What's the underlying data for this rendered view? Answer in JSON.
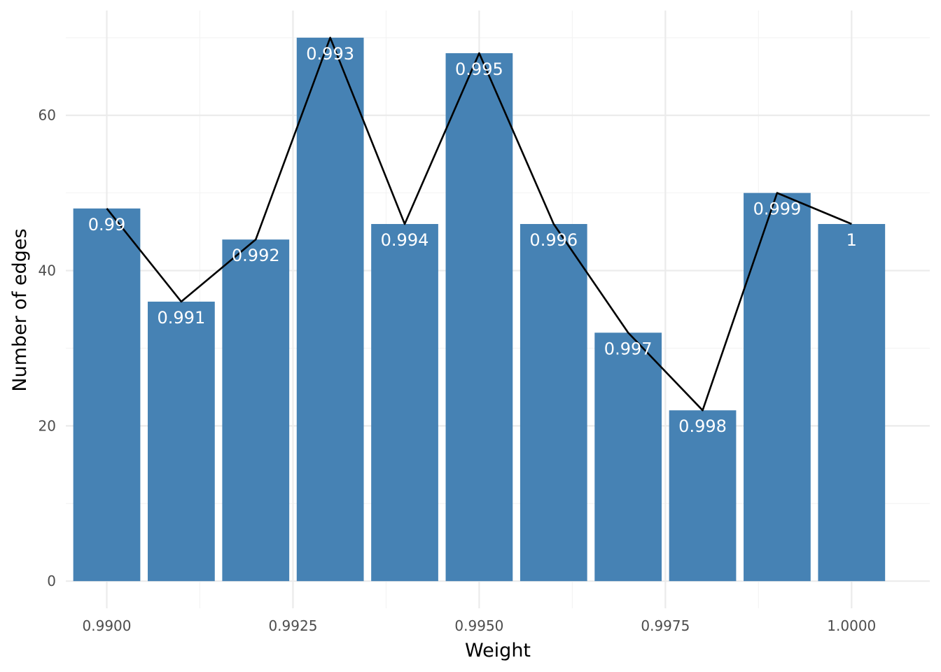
{
  "chart_data": {
    "type": "bar",
    "xlabel": "Weight",
    "ylabel": "Number of edges",
    "x": [
      0.99,
      0.991,
      0.992,
      0.993,
      0.994,
      0.995,
      0.996,
      0.997,
      0.998,
      0.999,
      1.0
    ],
    "values": [
      48,
      36,
      44,
      70,
      46,
      68,
      46,
      32,
      22,
      50,
      46
    ],
    "bar_labels": [
      "0.99",
      "0.991",
      "0.992",
      "0.993",
      "0.994",
      "0.995",
      "0.996",
      "0.997",
      "0.998",
      "0.999",
      "1"
    ],
    "overlay_line": {
      "type": "line",
      "x": [
        0.99,
        0.991,
        0.992,
        0.993,
        0.994,
        0.995,
        0.996,
        0.997,
        0.998,
        0.999,
        1.0
      ],
      "values": [
        48,
        36,
        44,
        70,
        46,
        68,
        46,
        32,
        22,
        50,
        46
      ]
    },
    "x_ticks": [
      0.99,
      0.9925,
      0.995,
      0.9975,
      1.0
    ],
    "x_tick_labels": [
      "0.9900",
      "0.9925",
      "0.9950",
      "0.9975",
      "1.0000"
    ],
    "y_ticks": [
      0,
      20,
      40,
      60
    ],
    "y_tick_labels": [
      "0",
      "20",
      "40",
      "60"
    ],
    "xlim": [
      0.98945,
      1.00105
    ],
    "ylim": [
      -3.5,
      73.5
    ],
    "grid": true,
    "legend": "none",
    "colors": {
      "bar": "#4682b4",
      "line": "#000000",
      "label": "#ffffff",
      "grid": "#ebebeb"
    }
  }
}
